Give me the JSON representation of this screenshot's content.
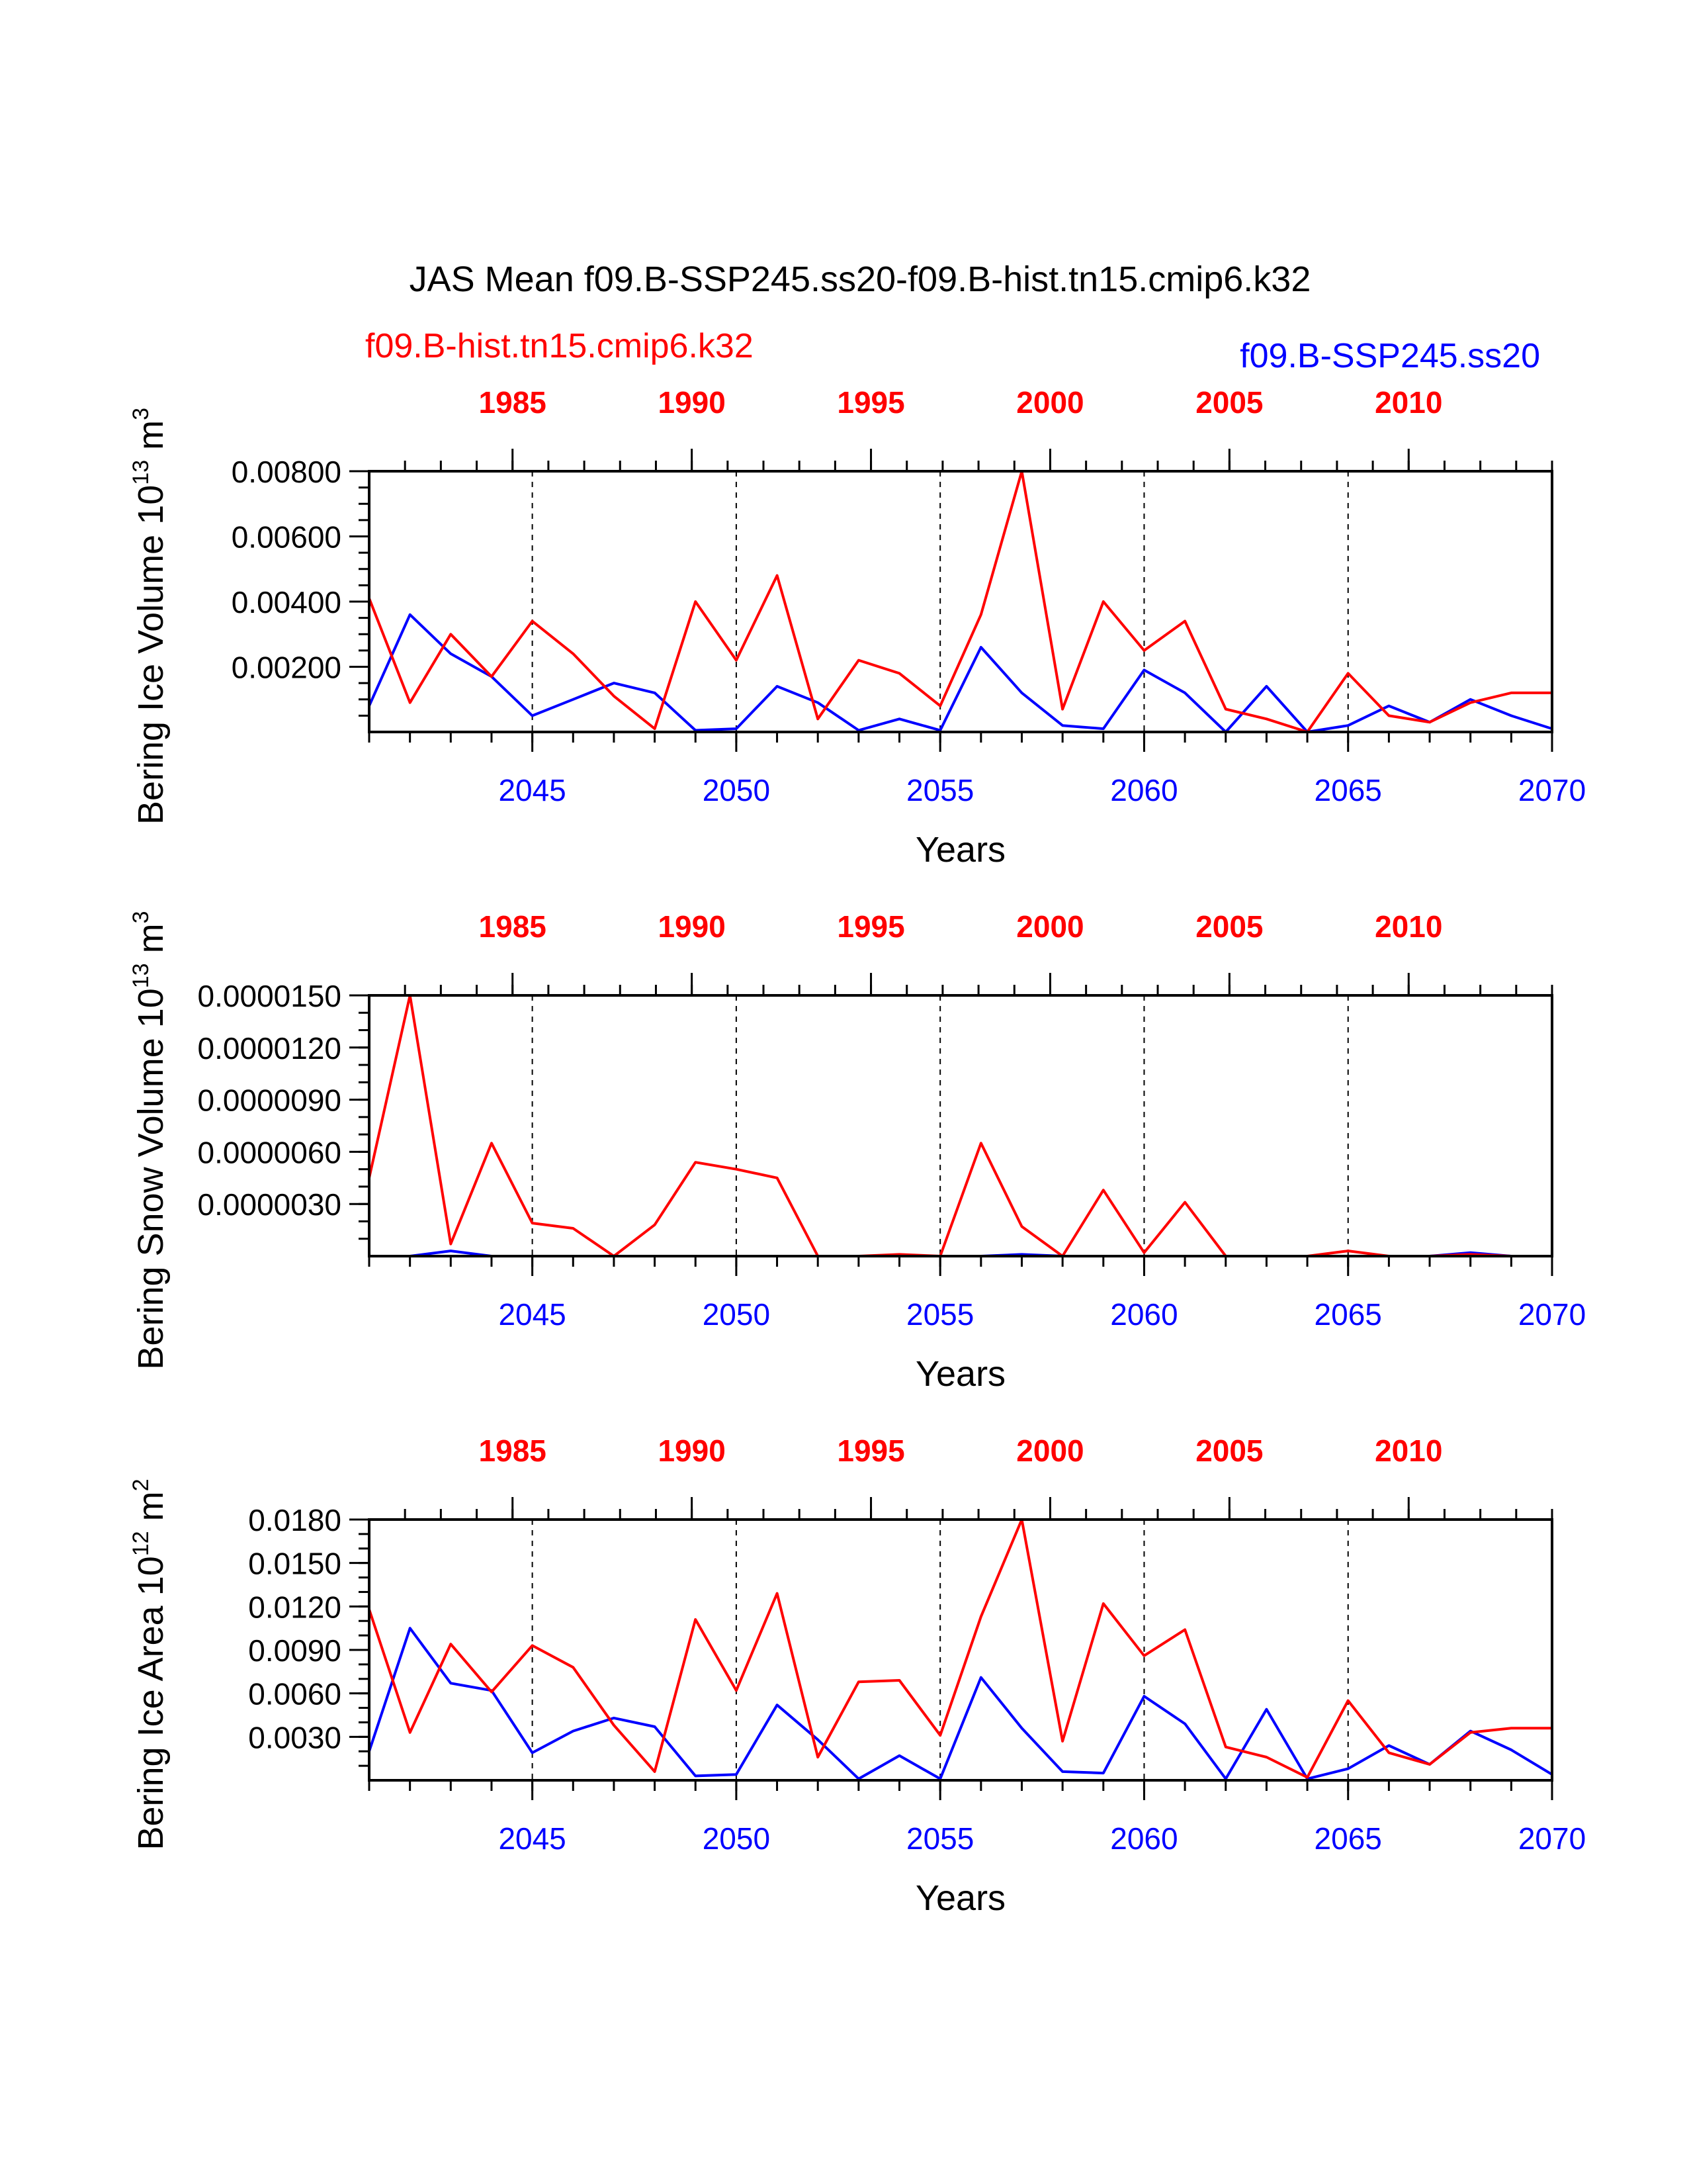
{
  "title": "JAS Mean f09.B-SSP245.ss20-f09.B-hist.tn15.cmip6.k32",
  "legend": {
    "left": {
      "text": "f09.B-hist.tn15.cmip6.k32",
      "color": "#ff0000"
    },
    "right": {
      "text": "f09.B-SSP245.ss20",
      "color": "#0000ff"
    }
  },
  "chart_data": [
    {
      "type": "line",
      "ylabel": "Bering Ice Volume 10",
      "ylabel_exp": "13",
      "ylabel_unit": " m",
      "ylabel_unit_exp": "3",
      "xlabel": "Years",
      "ylim": [
        0,
        0.008
      ],
      "yticks": [
        0.002,
        0.004,
        0.006,
        0.008
      ],
      "ytick_labels": [
        "0.00200",
        "0.00400",
        "0.00600",
        "0.00800"
      ],
      "ylim_minor_step": 0.0005,
      "bottom_axis": {
        "range": [
          2041,
          2070
        ],
        "ticks": [
          2045,
          2050,
          2055,
          2060,
          2065,
          2070
        ],
        "color": "#0000ff"
      },
      "top_axis": {
        "range": [
          1981,
          2014
        ],
        "ticks": [
          1985,
          1990,
          1995,
          2000,
          2005,
          2010
        ],
        "color": "#ff0000"
      },
      "grid_x": [
        2045,
        2050,
        2055,
        2060,
        2065
      ],
      "series": [
        {
          "name": "f09.B-SSP245.ss20",
          "color": "#0000ff",
          "values": [
            0.0008,
            0.0036,
            0.0024,
            0.0017,
            0.0005,
            0.001,
            0.0015,
            0.0012,
            5e-05,
            0.0001,
            0.0014,
            0.0009,
            5e-05,
            0.0004,
            5e-05,
            0.0026,
            0.0012,
            0.0002,
            0.0001,
            0.0019,
            0.0012,
            0.0,
            0.0014,
            0.0,
            0.0002,
            0.0008,
            0.0003,
            0.001,
            0.0005,
            0.0001
          ]
        },
        {
          "name": "f09.B-hist.tn15.cmip6.k32",
          "color": "#ff0000",
          "values": [
            0.0041,
            0.0009,
            0.003,
            0.0017,
            0.0034,
            0.0024,
            0.0011,
            0.0001,
            0.004,
            0.0022,
            0.0048,
            0.0004,
            0.0022,
            0.0018,
            0.0008,
            0.0036,
            0.008,
            0.0007,
            0.004,
            0.0025,
            0.0034,
            0.0007,
            0.0004,
            0.0,
            0.0018,
            0.0005,
            0.0003,
            0.0009,
            0.0012,
            0.0012
          ]
        }
      ]
    },
    {
      "type": "line",
      "ylabel": "Bering Snow Volume 10",
      "ylabel_exp": "13",
      "ylabel_unit": " m",
      "ylabel_unit_exp": "3",
      "xlabel": "Years",
      "ylim": [
        0,
        1.5e-05
      ],
      "yticks": [
        3e-06,
        6e-06,
        9e-06,
        1.2e-05,
        1.5e-05
      ],
      "ytick_labels": [
        "0.0000030",
        "0.0000060",
        "0.0000090",
        "0.0000120",
        "0.0000150"
      ],
      "ylim_minor_step": 1e-06,
      "bottom_axis": {
        "range": [
          2041,
          2070
        ],
        "ticks": [
          2045,
          2050,
          2055,
          2060,
          2065,
          2070
        ],
        "color": "#0000ff"
      },
      "top_axis": {
        "range": [
          1981,
          2014
        ],
        "ticks": [
          1985,
          1990,
          1995,
          2000,
          2005,
          2010
        ],
        "color": "#ff0000"
      },
      "grid_x": [
        2045,
        2050,
        2055,
        2060,
        2065
      ],
      "series": [
        {
          "name": "f09.B-SSP245.ss20",
          "color": "#0000ff",
          "values": [
            0,
            0,
            3e-07,
            0,
            0,
            0,
            0,
            0,
            0,
            0,
            0,
            0,
            0,
            0,
            0,
            0,
            1e-07,
            0,
            0,
            0,
            0,
            0,
            0,
            0,
            0,
            0,
            0,
            2e-07,
            0,
            0
          ]
        },
        {
          "name": "f09.B-hist.tn15.cmip6.k32",
          "color": "#ff0000",
          "values": [
            4.5e-06,
            1.5e-05,
            7e-07,
            6.5e-06,
            1.9e-06,
            1.6e-06,
            0.0,
            1.8e-06,
            5.4e-06,
            5e-06,
            4.5e-06,
            0.0,
            0.0,
            1e-07,
            0.0,
            6.5e-06,
            1.7e-06,
            0.0,
            3.8e-06,
            2e-07,
            3.1e-06,
            0.0,
            0.0,
            0.0,
            3e-07,
            0.0,
            0.0,
            1e-07,
            0.0,
            0.0
          ]
        }
      ]
    },
    {
      "type": "line",
      "ylabel": "Bering Ice Area 10",
      "ylabel_exp": "12",
      "ylabel_unit": " m",
      "ylabel_unit_exp": "2",
      "xlabel": "Years",
      "ylim": [
        0,
        0.018
      ],
      "yticks": [
        0.003,
        0.006,
        0.009,
        0.012,
        0.015,
        0.018
      ],
      "ytick_labels": [
        "0.0030",
        "0.0060",
        "0.0090",
        "0.0120",
        "0.0150",
        "0.0180"
      ],
      "ylim_minor_step": 0.001,
      "bottom_axis": {
        "range": [
          2041,
          2070
        ],
        "ticks": [
          2045,
          2050,
          2055,
          2060,
          2065,
          2070
        ],
        "color": "#0000ff"
      },
      "top_axis": {
        "range": [
          1981,
          2014
        ],
        "ticks": [
          1985,
          1990,
          1995,
          2000,
          2005,
          2010
        ],
        "color": "#ff0000"
      },
      "grid_x": [
        2045,
        2050,
        2055,
        2060,
        2065
      ],
      "series": [
        {
          "name": "f09.B-SSP245.ss20",
          "color": "#0000ff",
          "values": [
            0.002,
            0.0105,
            0.0067,
            0.0062,
            0.0019,
            0.0034,
            0.0043,
            0.0037,
            0.0003,
            0.0004,
            0.0052,
            0.0028,
            0.0001,
            0.0017,
            0.0001,
            0.0071,
            0.0036,
            0.0006,
            0.0005,
            0.0058,
            0.0039,
            0.0001,
            0.0049,
            0.0001,
            0.0008,
            0.0024,
            0.0011,
            0.0034,
            0.0021,
            0.0004
          ]
        },
        {
          "name": "f09.B-hist.tn15.cmip6.k32",
          "color": "#ff0000",
          "values": [
            0.0118,
            0.0033,
            0.0094,
            0.0061,
            0.0093,
            0.0078,
            0.0038,
            0.0006,
            0.0111,
            0.0062,
            0.0129,
            0.0016,
            0.0068,
            0.0069,
            0.0031,
            0.0113,
            0.018,
            0.0027,
            0.0122,
            0.0086,
            0.0104,
            0.0023,
            0.0016,
            0.0002,
            0.0055,
            0.0019,
            0.0011,
            0.0033,
            0.0036,
            0.0036
          ]
        }
      ]
    }
  ]
}
